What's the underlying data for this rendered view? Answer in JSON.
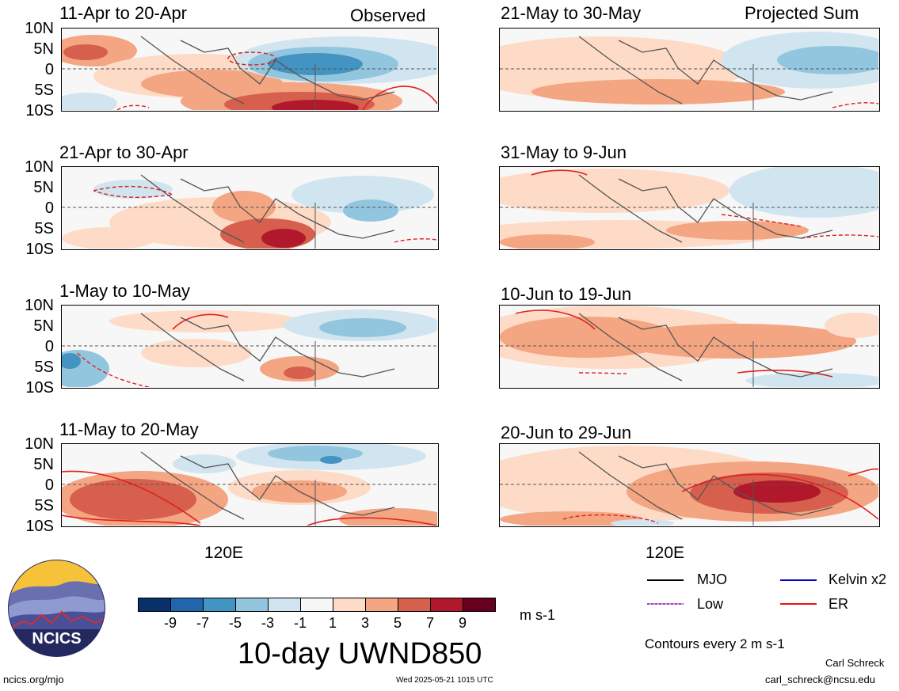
{
  "header": {
    "observed_label": "Observed",
    "projected_label": "Projected Sum"
  },
  "lat_labels": [
    "10N",
    "5N",
    "0",
    "5S",
    "10S"
  ],
  "panels_left": [
    {
      "title": "11-Apr to 20-Apr"
    },
    {
      "title": "21-Apr to 30-Apr"
    },
    {
      "title": "1-May to 10-May"
    },
    {
      "title": "11-May to 20-May"
    }
  ],
  "panels_right": [
    {
      "title": "21-May to 30-May"
    },
    {
      "title": "31-May to 9-Jun"
    },
    {
      "title": "10-Jun to 19-Jun"
    },
    {
      "title": "20-Jun to 29-Jun"
    }
  ],
  "lon_label": "120E",
  "colorbar": {
    "ticks": [
      "-9",
      "-7",
      "-5",
      "-3",
      "-1",
      "1",
      "3",
      "5",
      "7",
      "9"
    ],
    "colors": [
      "#08306b",
      "#2166ac",
      "#4393c3",
      "#92c5de",
      "#d1e5f0",
      "#f7f7f7",
      "#fddbc7",
      "#f4a582",
      "#d6604d",
      "#b2182b",
      "#67001f"
    ],
    "units": "m s-1",
    "title": "10-day UWND850"
  },
  "legend": {
    "items": [
      {
        "label": "MJO",
        "color": "#000000"
      },
      {
        "label": "Kelvin x2",
        "color": "#0000cc"
      },
      {
        "label": "Low",
        "color": "#a040c0"
      },
      {
        "label": "ER",
        "color": "#ee1111"
      }
    ],
    "note": "Contours every 2 m s-1"
  },
  "footer": {
    "logo_text": "NCICS",
    "site": "ncics.org/mjo",
    "timestamp": "Wed 2025-05-21 1015 UTC",
    "author": "Carl Schreck",
    "email": "carl_schreck@ncsu.edu"
  }
}
